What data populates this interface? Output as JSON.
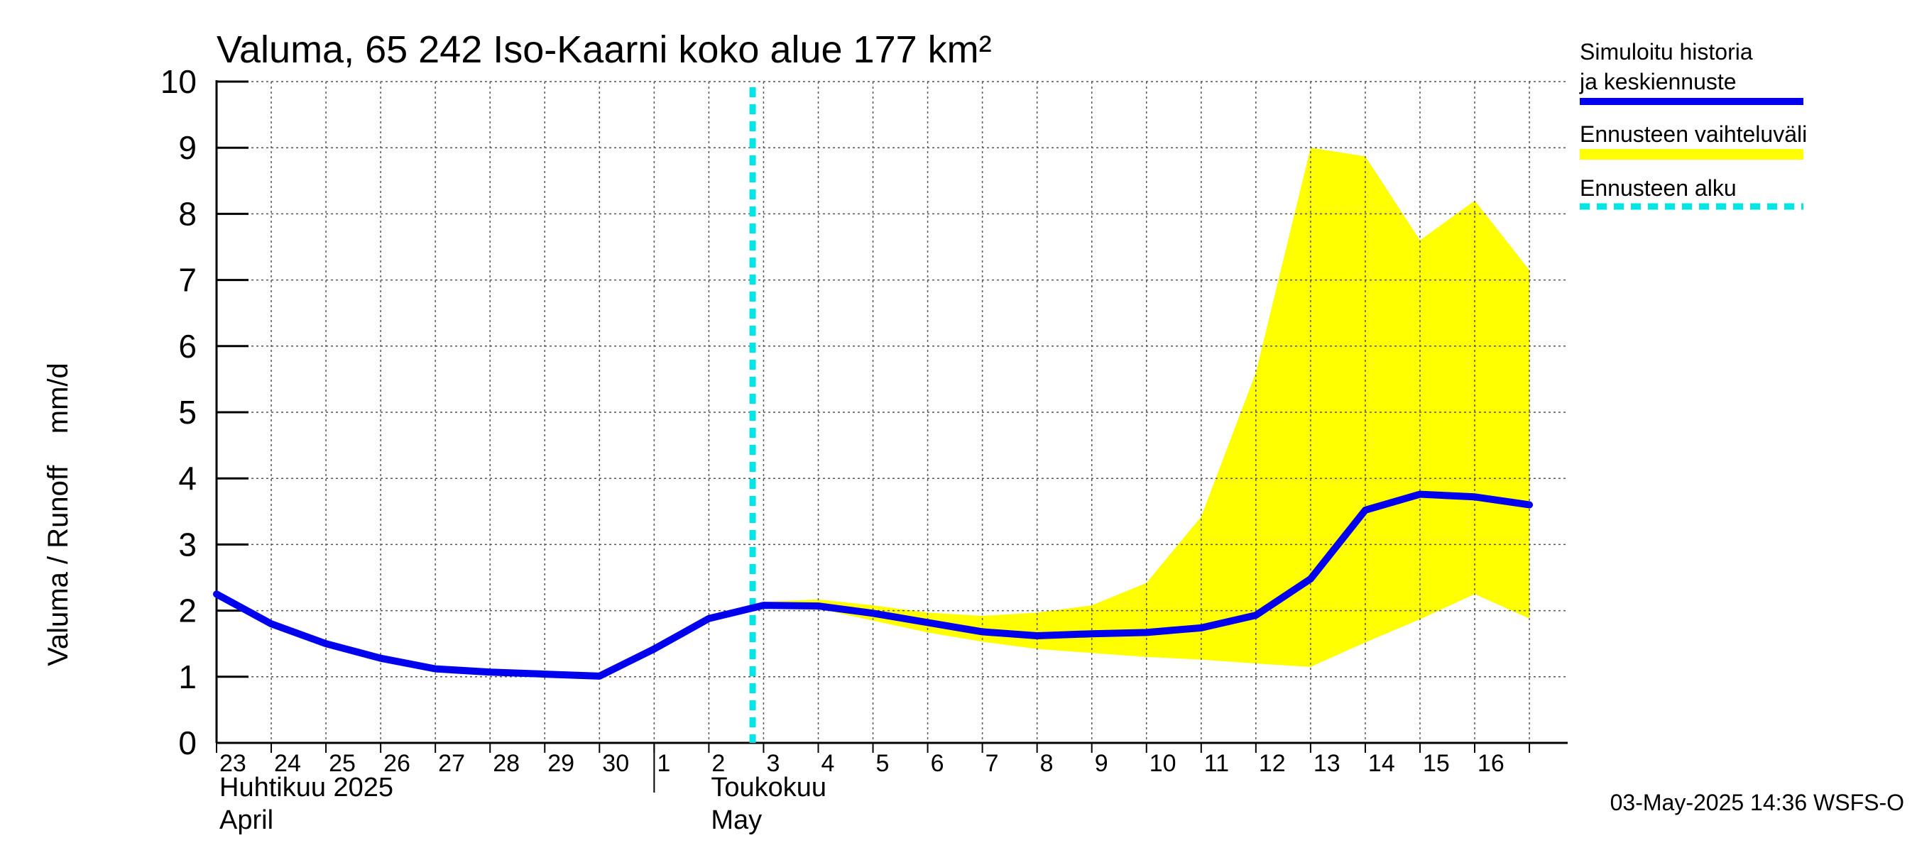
{
  "chart_data": {
    "type": "line",
    "title": "Valuma, 65 242 Iso-Kaarni koko alue 177 km²",
    "ylabel": "Valuma / Runoff    mm/d",
    "ylim": [
      0,
      10
    ],
    "yticks": [
      0,
      1,
      2,
      3,
      4,
      5,
      6,
      7,
      8,
      9,
      10
    ],
    "x_days": [
      "23",
      "24",
      "25",
      "26",
      "27",
      "28",
      "29",
      "30",
      "1",
      "2",
      "3",
      "4",
      "5",
      "6",
      "7",
      "8",
      "9",
      "10",
      "11",
      "12",
      "13",
      "14",
      "15",
      "16"
    ],
    "month_labels": [
      {
        "line1": "Huhtikuu  2025",
        "line2": "April"
      },
      {
        "line1": "Toukokuu",
        "line2": "May"
      }
    ],
    "grid": true,
    "legend_position": "right",
    "forecast_start_day_index": 9.8,
    "series": [
      {
        "name": "Simuloitu historia ja keskiennuste",
        "color": "#0000ee",
        "x": [
          0,
          1,
          2,
          3,
          4,
          5,
          6,
          7,
          8,
          9,
          10,
          11,
          12,
          13,
          14,
          15,
          16,
          17,
          18,
          19,
          20,
          21,
          22,
          23,
          24
        ],
        "values": [
          2.25,
          1.8,
          1.5,
          1.28,
          1.12,
          1.07,
          1.04,
          1.01,
          1.42,
          1.88,
          2.08,
          2.07,
          1.96,
          1.82,
          1.68,
          1.62,
          1.65,
          1.67,
          1.74,
          1.93,
          2.48,
          3.52,
          3.76,
          3.72,
          3.6
        ]
      },
      {
        "name": "Ennusteen vaihteluväli",
        "color": "#ffff00",
        "x": [
          10,
          11,
          12,
          13,
          14,
          15,
          16,
          17,
          18,
          19,
          20,
          21,
          22,
          23,
          24
        ],
        "upper": [
          2.13,
          2.17,
          2.08,
          1.97,
          1.92,
          1.97,
          2.08,
          2.42,
          3.42,
          5.6,
          9.0,
          8.87,
          7.6,
          8.2,
          7.15
        ],
        "lower": [
          2.07,
          2.03,
          1.85,
          1.67,
          1.53,
          1.42,
          1.36,
          1.3,
          1.26,
          1.2,
          1.15,
          1.52,
          1.87,
          2.25,
          1.88
        ]
      },
      {
        "name": "Ennusteen alku",
        "color": "#00e5e5"
      }
    ],
    "footer": "03-May-2025 14:36 WSFS-O"
  }
}
